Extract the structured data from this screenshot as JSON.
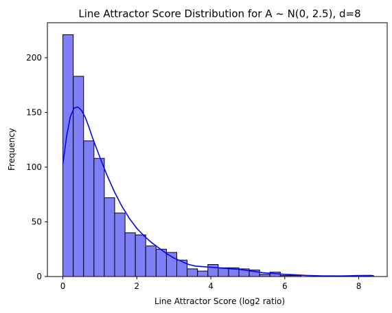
{
  "chart_data": {
    "type": "bar",
    "title": "Line Attractor Score Distribution for A ~ N(0, 2.5), d=8",
    "xlabel": "Line Attractor Score (log2 ratio)",
    "ylabel": "Frequency",
    "xlim": [
      -0.42,
      8.77
    ],
    "ylim": [
      0,
      232
    ],
    "xticks": [
      0,
      2,
      4,
      6,
      8
    ],
    "yticks": [
      0,
      50,
      100,
      150,
      200
    ],
    "grid": false,
    "bin_width": 0.28,
    "bins": [
      {
        "x0": 0.0,
        "count": 221
      },
      {
        "x0": 0.28,
        "count": 183
      },
      {
        "x0": 0.56,
        "count": 124
      },
      {
        "x0": 0.84,
        "count": 108
      },
      {
        "x0": 1.12,
        "count": 72
      },
      {
        "x0": 1.4,
        "count": 58
      },
      {
        "x0": 1.68,
        "count": 40
      },
      {
        "x0": 1.96,
        "count": 38
      },
      {
        "x0": 2.24,
        "count": 28
      },
      {
        "x0": 2.52,
        "count": 25
      },
      {
        "x0": 2.8,
        "count": 22
      },
      {
        "x0": 3.08,
        "count": 15
      },
      {
        "x0": 3.36,
        "count": 7
      },
      {
        "x0": 3.64,
        "count": 5
      },
      {
        "x0": 3.92,
        "count": 11
      },
      {
        "x0": 4.2,
        "count": 8
      },
      {
        "x0": 4.48,
        "count": 8
      },
      {
        "x0": 4.76,
        "count": 7
      },
      {
        "x0": 5.04,
        "count": 6
      },
      {
        "x0": 5.32,
        "count": 2
      },
      {
        "x0": 5.6,
        "count": 4
      },
      {
        "x0": 5.88,
        "count": 1
      },
      {
        "x0": 6.16,
        "count": 1
      },
      {
        "x0": 6.44,
        "count": 0
      },
      {
        "x0": 6.72,
        "count": 0
      },
      {
        "x0": 7.0,
        "count": 0
      },
      {
        "x0": 7.28,
        "count": 0
      },
      {
        "x0": 7.56,
        "count": 0
      },
      {
        "x0": 7.84,
        "count": 1
      },
      {
        "x0": 8.12,
        "count": 1
      }
    ],
    "kde": [
      [
        0.0,
        103
      ],
      [
        0.1,
        128
      ],
      [
        0.2,
        146
      ],
      [
        0.3,
        154
      ],
      [
        0.4,
        155
      ],
      [
        0.5,
        152
      ],
      [
        0.6,
        146
      ],
      [
        0.7,
        137
      ],
      [
        0.8,
        127
      ],
      [
        1.0,
        109
      ],
      [
        1.2,
        92
      ],
      [
        1.4,
        77
      ],
      [
        1.6,
        64
      ],
      [
        1.8,
        53
      ],
      [
        2.0,
        44
      ],
      [
        2.2,
        37
      ],
      [
        2.4,
        31
      ],
      [
        2.6,
        26
      ],
      [
        2.8,
        21
      ],
      [
        3.0,
        17
      ],
      [
        3.2,
        14
      ],
      [
        3.4,
        11
      ],
      [
        3.6,
        9.5
      ],
      [
        3.8,
        9
      ],
      [
        4.0,
        8.5
      ],
      [
        4.2,
        8
      ],
      [
        4.4,
        7.5
      ],
      [
        4.6,
        7
      ],
      [
        4.8,
        6.5
      ],
      [
        5.0,
        5.5
      ],
      [
        5.2,
        4.5
      ],
      [
        5.4,
        3.5
      ],
      [
        5.6,
        3
      ],
      [
        5.8,
        2.5
      ],
      [
        6.0,
        2
      ],
      [
        6.3,
        1.5
      ],
      [
        6.6,
        1
      ],
      [
        7.0,
        0.6
      ],
      [
        7.5,
        0.5
      ],
      [
        8.0,
        0.8
      ],
      [
        8.35,
        1
      ]
    ],
    "colors": {
      "bar_fill": "#7f7ff7",
      "bar_edge": "#000000",
      "kde_line": "#0000ff"
    }
  }
}
